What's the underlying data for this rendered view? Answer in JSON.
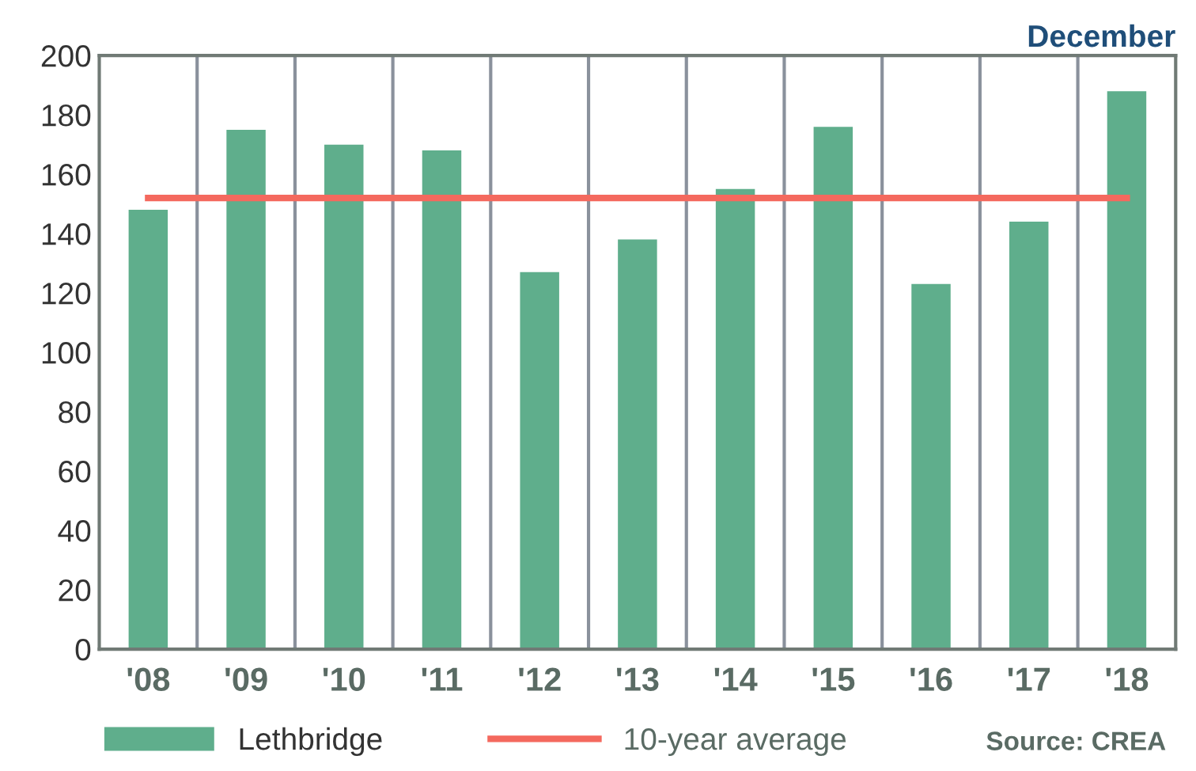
{
  "chart_data": {
    "type": "bar",
    "title": "December",
    "categories": [
      "'08",
      "'09",
      "'10",
      "'11",
      "'12",
      "'13",
      "'14",
      "'15",
      "'16",
      "'17",
      "'18"
    ],
    "series": [
      {
        "name": "Lethbridge",
        "color": "#5fae8c",
        "values": [
          148,
          175,
          170,
          168,
          127,
          138,
          155,
          176,
          123,
          144,
          188
        ]
      },
      {
        "name": "10-year average",
        "type": "line",
        "color": "#f4695e",
        "values": [
          152,
          152,
          152,
          152,
          152,
          152,
          152,
          152,
          152,
          152,
          152
        ]
      }
    ],
    "ylim": [
      0,
      200
    ],
    "yticks": [
      0,
      20,
      40,
      60,
      80,
      100,
      120,
      140,
      160,
      180,
      200
    ],
    "grid": "x",
    "legend": "bottom",
    "marker": "none",
    "line_style": "solid",
    "annotations": [
      "Source: CREA"
    ]
  }
}
